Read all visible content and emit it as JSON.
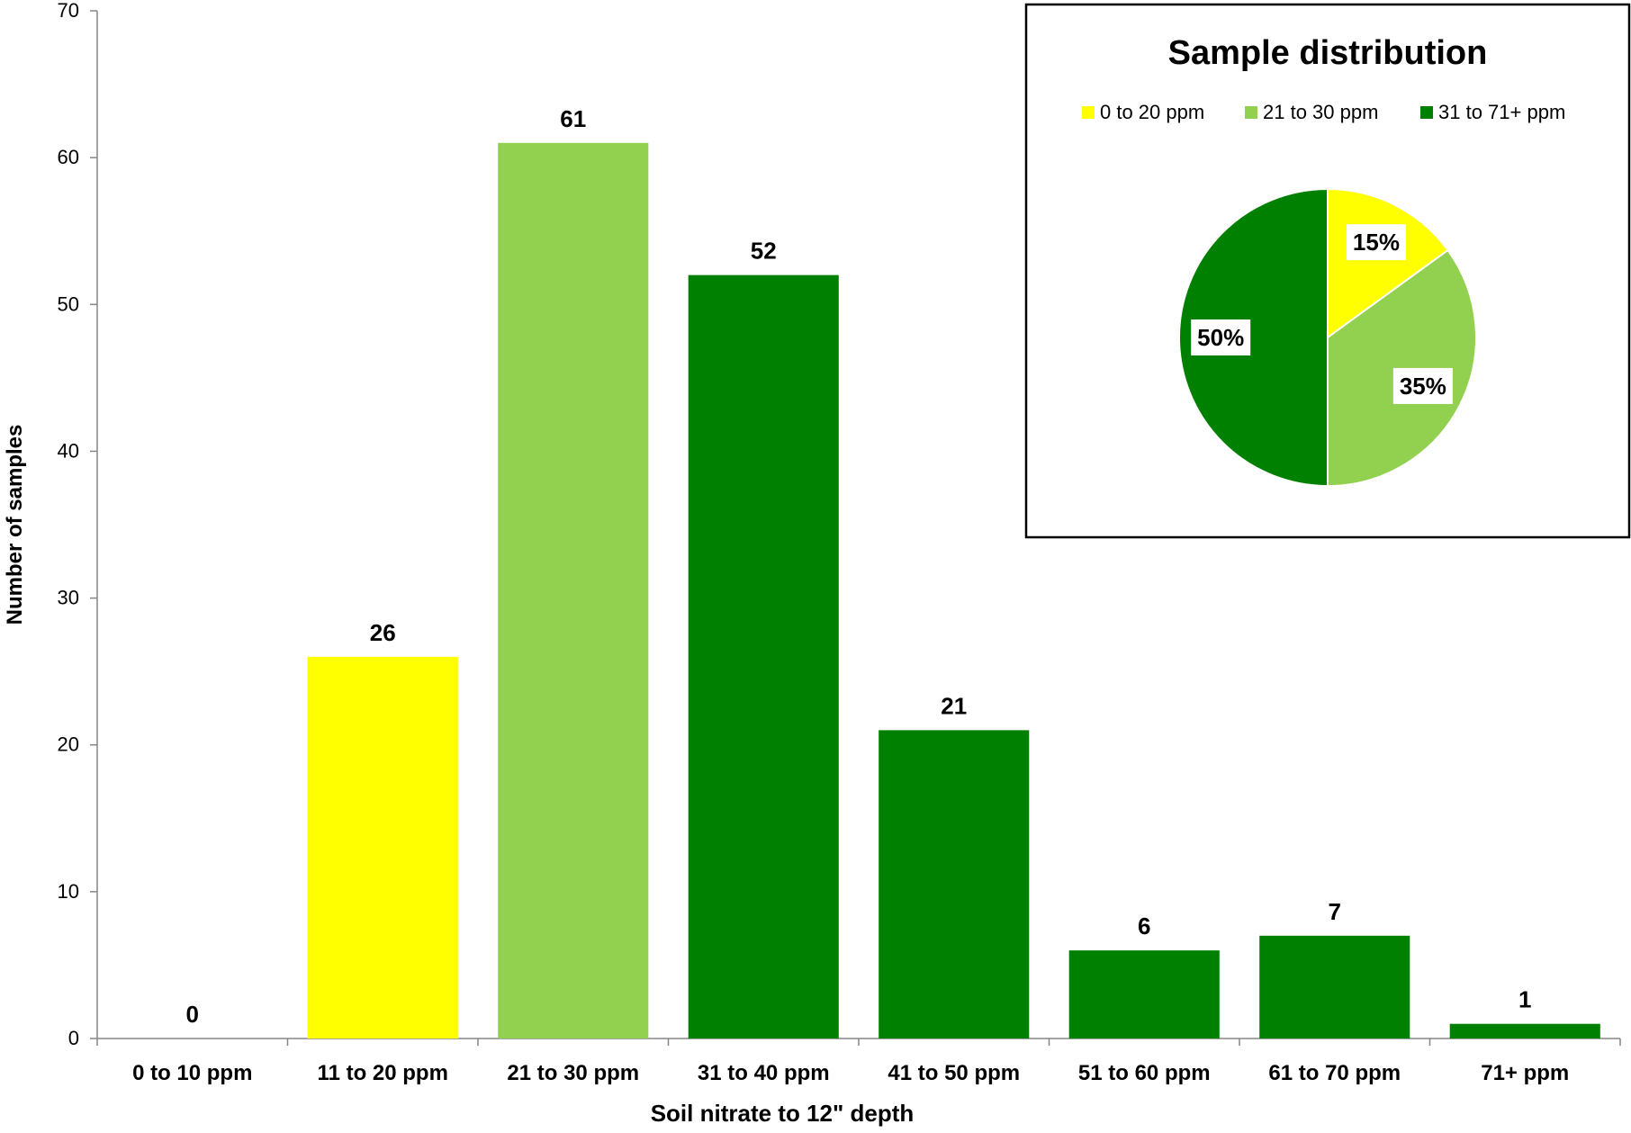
{
  "chart_data": [
    {
      "type": "bar",
      "xlabel": "Soil nitrate to 12\" depth",
      "ylabel": "Number of samples",
      "ylim": [
        0,
        70
      ],
      "yticks": [
        0,
        10,
        20,
        30,
        40,
        50,
        60,
        70
      ],
      "categories": [
        "0 to 10 ppm",
        "11 to 20 ppm",
        "21 to 30 ppm",
        "31 to 40 ppm",
        "41 to 50 ppm",
        "51 to 60 ppm",
        "61 to 70 ppm",
        "71+ ppm"
      ],
      "values": [
        0,
        26,
        61,
        52,
        21,
        6,
        7,
        1
      ],
      "bar_colors": [
        "#ffff00",
        "#ffff00",
        "#92d050",
        "#008000",
        "#008000",
        "#008000",
        "#008000",
        "#008000"
      ],
      "data_labels": [
        "0",
        "26",
        "61",
        "52",
        "21",
        "6",
        "7",
        "1"
      ],
      "grid": false
    },
    {
      "type": "pie",
      "title": "Sample distribution",
      "labels": [
        "0 to 20 ppm",
        "21 to 30 ppm",
        "31 to 71+ ppm"
      ],
      "values": [
        15,
        35,
        50
      ],
      "value_labels": [
        "15%",
        "35%",
        "50%"
      ],
      "colors": [
        "#ffff00",
        "#92d050",
        "#008000"
      ],
      "legend_position": "top"
    }
  ]
}
